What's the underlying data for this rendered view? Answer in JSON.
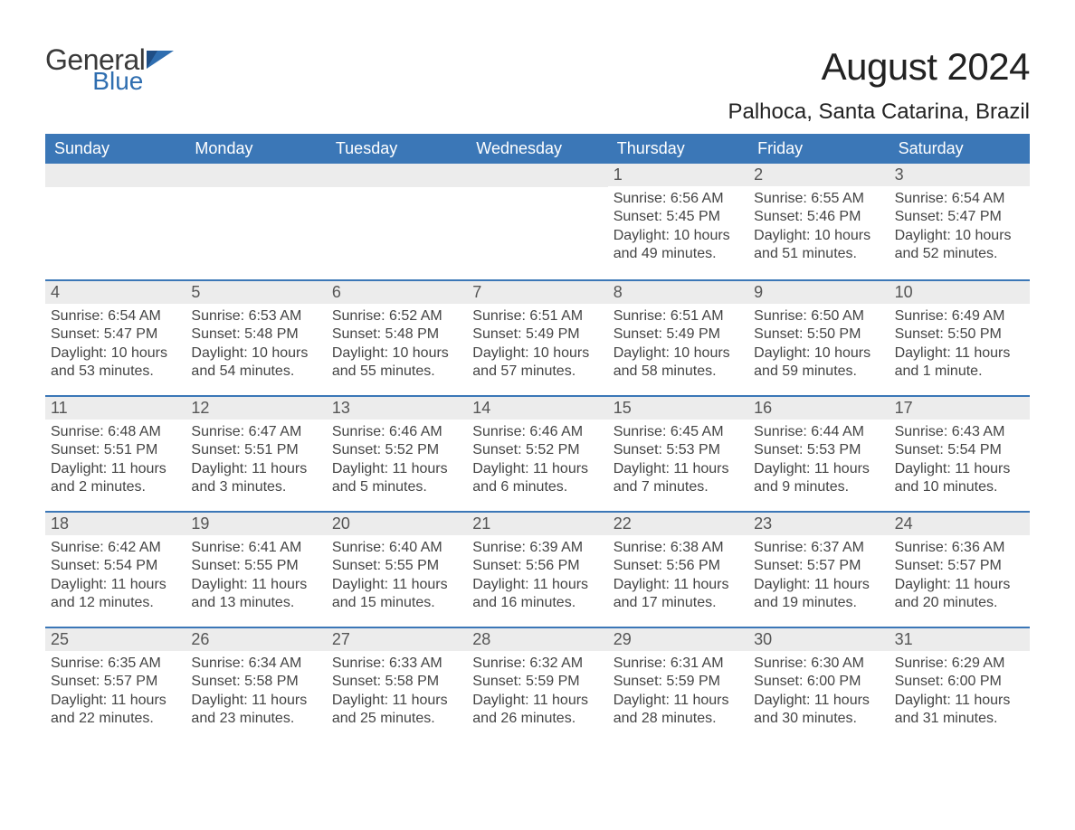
{
  "brand": {
    "name_part1": "General",
    "name_part2": "Blue",
    "text_color": "#3a3a3a",
    "accent_color": "#2f6eb0"
  },
  "header": {
    "month_title": "August 2024",
    "location": "Palhoca, Santa Catarina, Brazil",
    "title_fontsize": 42,
    "location_fontsize": 24,
    "title_color": "#222222"
  },
  "calendar": {
    "type": "table",
    "header_bg": "#3b77b7",
    "header_text_color": "#ffffff",
    "row_divider_color": "#3b77b7",
    "daynum_bar_bg": "#ececec",
    "daynum_text_color": "#555555",
    "body_text_color": "#444444",
    "body_fontsize": 16,
    "header_fontsize": 18,
    "columns": [
      "Sunday",
      "Monday",
      "Tuesday",
      "Wednesday",
      "Thursday",
      "Friday",
      "Saturday"
    ],
    "weeks": [
      [
        {
          "day": "",
          "sunrise": "",
          "sunset": "",
          "daylight": ""
        },
        {
          "day": "",
          "sunrise": "",
          "sunset": "",
          "daylight": ""
        },
        {
          "day": "",
          "sunrise": "",
          "sunset": "",
          "daylight": ""
        },
        {
          "day": "",
          "sunrise": "",
          "sunset": "",
          "daylight": ""
        },
        {
          "day": "1",
          "sunrise": "Sunrise: 6:56 AM",
          "sunset": "Sunset: 5:45 PM",
          "daylight": "Daylight: 10 hours and 49 minutes."
        },
        {
          "day": "2",
          "sunrise": "Sunrise: 6:55 AM",
          "sunset": "Sunset: 5:46 PM",
          "daylight": "Daylight: 10 hours and 51 minutes."
        },
        {
          "day": "3",
          "sunrise": "Sunrise: 6:54 AM",
          "sunset": "Sunset: 5:47 PM",
          "daylight": "Daylight: 10 hours and 52 minutes."
        }
      ],
      [
        {
          "day": "4",
          "sunrise": "Sunrise: 6:54 AM",
          "sunset": "Sunset: 5:47 PM",
          "daylight": "Daylight: 10 hours and 53 minutes."
        },
        {
          "day": "5",
          "sunrise": "Sunrise: 6:53 AM",
          "sunset": "Sunset: 5:48 PM",
          "daylight": "Daylight: 10 hours and 54 minutes."
        },
        {
          "day": "6",
          "sunrise": "Sunrise: 6:52 AM",
          "sunset": "Sunset: 5:48 PM",
          "daylight": "Daylight: 10 hours and 55 minutes."
        },
        {
          "day": "7",
          "sunrise": "Sunrise: 6:51 AM",
          "sunset": "Sunset: 5:49 PM",
          "daylight": "Daylight: 10 hours and 57 minutes."
        },
        {
          "day": "8",
          "sunrise": "Sunrise: 6:51 AM",
          "sunset": "Sunset: 5:49 PM",
          "daylight": "Daylight: 10 hours and 58 minutes."
        },
        {
          "day": "9",
          "sunrise": "Sunrise: 6:50 AM",
          "sunset": "Sunset: 5:50 PM",
          "daylight": "Daylight: 10 hours and 59 minutes."
        },
        {
          "day": "10",
          "sunrise": "Sunrise: 6:49 AM",
          "sunset": "Sunset: 5:50 PM",
          "daylight": "Daylight: 11 hours and 1 minute."
        }
      ],
      [
        {
          "day": "11",
          "sunrise": "Sunrise: 6:48 AM",
          "sunset": "Sunset: 5:51 PM",
          "daylight": "Daylight: 11 hours and 2 minutes."
        },
        {
          "day": "12",
          "sunrise": "Sunrise: 6:47 AM",
          "sunset": "Sunset: 5:51 PM",
          "daylight": "Daylight: 11 hours and 3 minutes."
        },
        {
          "day": "13",
          "sunrise": "Sunrise: 6:46 AM",
          "sunset": "Sunset: 5:52 PM",
          "daylight": "Daylight: 11 hours and 5 minutes."
        },
        {
          "day": "14",
          "sunrise": "Sunrise: 6:46 AM",
          "sunset": "Sunset: 5:52 PM",
          "daylight": "Daylight: 11 hours and 6 minutes."
        },
        {
          "day": "15",
          "sunrise": "Sunrise: 6:45 AM",
          "sunset": "Sunset: 5:53 PM",
          "daylight": "Daylight: 11 hours and 7 minutes."
        },
        {
          "day": "16",
          "sunrise": "Sunrise: 6:44 AM",
          "sunset": "Sunset: 5:53 PM",
          "daylight": "Daylight: 11 hours and 9 minutes."
        },
        {
          "day": "17",
          "sunrise": "Sunrise: 6:43 AM",
          "sunset": "Sunset: 5:54 PM",
          "daylight": "Daylight: 11 hours and 10 minutes."
        }
      ],
      [
        {
          "day": "18",
          "sunrise": "Sunrise: 6:42 AM",
          "sunset": "Sunset: 5:54 PM",
          "daylight": "Daylight: 11 hours and 12 minutes."
        },
        {
          "day": "19",
          "sunrise": "Sunrise: 6:41 AM",
          "sunset": "Sunset: 5:55 PM",
          "daylight": "Daylight: 11 hours and 13 minutes."
        },
        {
          "day": "20",
          "sunrise": "Sunrise: 6:40 AM",
          "sunset": "Sunset: 5:55 PM",
          "daylight": "Daylight: 11 hours and 15 minutes."
        },
        {
          "day": "21",
          "sunrise": "Sunrise: 6:39 AM",
          "sunset": "Sunset: 5:56 PM",
          "daylight": "Daylight: 11 hours and 16 minutes."
        },
        {
          "day": "22",
          "sunrise": "Sunrise: 6:38 AM",
          "sunset": "Sunset: 5:56 PM",
          "daylight": "Daylight: 11 hours and 17 minutes."
        },
        {
          "day": "23",
          "sunrise": "Sunrise: 6:37 AM",
          "sunset": "Sunset: 5:57 PM",
          "daylight": "Daylight: 11 hours and 19 minutes."
        },
        {
          "day": "24",
          "sunrise": "Sunrise: 6:36 AM",
          "sunset": "Sunset: 5:57 PM",
          "daylight": "Daylight: 11 hours and 20 minutes."
        }
      ],
      [
        {
          "day": "25",
          "sunrise": "Sunrise: 6:35 AM",
          "sunset": "Sunset: 5:57 PM",
          "daylight": "Daylight: 11 hours and 22 minutes."
        },
        {
          "day": "26",
          "sunrise": "Sunrise: 6:34 AM",
          "sunset": "Sunset: 5:58 PM",
          "daylight": "Daylight: 11 hours and 23 minutes."
        },
        {
          "day": "27",
          "sunrise": "Sunrise: 6:33 AM",
          "sunset": "Sunset: 5:58 PM",
          "daylight": "Daylight: 11 hours and 25 minutes."
        },
        {
          "day": "28",
          "sunrise": "Sunrise: 6:32 AM",
          "sunset": "Sunset: 5:59 PM",
          "daylight": "Daylight: 11 hours and 26 minutes."
        },
        {
          "day": "29",
          "sunrise": "Sunrise: 6:31 AM",
          "sunset": "Sunset: 5:59 PM",
          "daylight": "Daylight: 11 hours and 28 minutes."
        },
        {
          "day": "30",
          "sunrise": "Sunrise: 6:30 AM",
          "sunset": "Sunset: 6:00 PM",
          "daylight": "Daylight: 11 hours and 30 minutes."
        },
        {
          "day": "31",
          "sunrise": "Sunrise: 6:29 AM",
          "sunset": "Sunset: 6:00 PM",
          "daylight": "Daylight: 11 hours and 31 minutes."
        }
      ]
    ]
  }
}
